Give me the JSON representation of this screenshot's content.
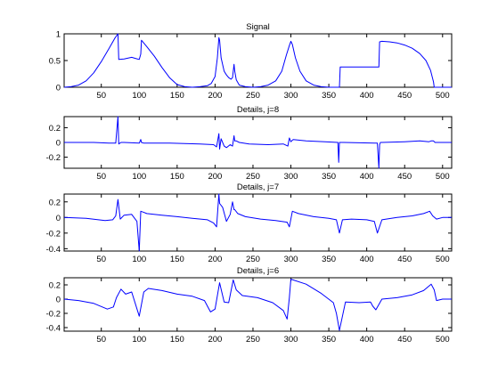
{
  "figure": {
    "background": "#ffffff",
    "line_color": "#0000ff",
    "axis_color": "#000000"
  },
  "chart_data": [
    {
      "type": "line",
      "title": "Signal",
      "xlim": [
        1,
        512
      ],
      "ylim": [
        0,
        1
      ],
      "xticks": [
        50,
        100,
        150,
        200,
        250,
        300,
        350,
        400,
        450,
        500
      ],
      "yticks": [
        0,
        0.5,
        1
      ],
      "ytick_labels": [
        "0",
        "0.5",
        "1"
      ],
      "grid": false,
      "series": [
        {
          "x": [
            1,
            10,
            20,
            30,
            40,
            50,
            60,
            68,
            72,
            73,
            80,
            90,
            95,
            100,
            102,
            103,
            110,
            120,
            130,
            140,
            150,
            160,
            170,
            180,
            190,
            195,
            200,
            203,
            205,
            206,
            208,
            212,
            215,
            218,
            221,
            223,
            225,
            226,
            228,
            232,
            240,
            250,
            260,
            270,
            280,
            288,
            294,
            298,
            300,
            302,
            306,
            312,
            320,
            330,
            340,
            350,
            362,
            364,
            365,
            380,
            400,
            416,
            417,
            420,
            430,
            440,
            450,
            460,
            470,
            478,
            484,
            488,
            489,
            490,
            512
          ],
          "y": [
            0,
            0.01,
            0.04,
            0.12,
            0.27,
            0.48,
            0.72,
            0.92,
            1.0,
            0.52,
            0.53,
            0.56,
            0.54,
            0.52,
            0.62,
            0.88,
            0.76,
            0.58,
            0.37,
            0.18,
            0.05,
            0.01,
            0,
            0.01,
            0.03,
            0.07,
            0.2,
            0.55,
            0.93,
            0.88,
            0.55,
            0.3,
            0.23,
            0.18,
            0.15,
            0.18,
            0.43,
            0.3,
            0.14,
            0.04,
            0.01,
            0,
            0.01,
            0.04,
            0.12,
            0.3,
            0.6,
            0.78,
            0.86,
            0.8,
            0.55,
            0.3,
            0.12,
            0.04,
            0.01,
            0,
            0,
            0,
            0.38,
            0.38,
            0.38,
            0.38,
            0.85,
            0.86,
            0.85,
            0.83,
            0.79,
            0.73,
            0.63,
            0.5,
            0.32,
            0.1,
            0,
            0,
            0
          ]
        }
      ]
    },
    {
      "type": "line",
      "title": "Details, j=8",
      "xlim": [
        1,
        512
      ],
      "ylim": [
        -0.35,
        0.35
      ],
      "xticks": [
        50,
        100,
        150,
        200,
        250,
        300,
        350,
        400,
        450,
        500
      ],
      "yticks": [
        -0.2,
        0,
        0.2
      ],
      "ytick_labels": [
        "-0.2",
        "0",
        "0.2"
      ],
      "grid": false,
      "series": [
        {
          "x": [
            1,
            40,
            60,
            69,
            72,
            73,
            76,
            80,
            100,
            102,
            103,
            106,
            140,
            180,
            198,
            202,
            205,
            206,
            208,
            212,
            215,
            220,
            223,
            225,
            226,
            228,
            232,
            245,
            270,
            290,
            296,
            298,
            300,
            303,
            320,
            345,
            362,
            363,
            364,
            365,
            366,
            370,
            410,
            414,
            416,
            417,
            418,
            420,
            450,
            470,
            482,
            485,
            488,
            490,
            500,
            512
          ],
          "y": [
            0,
            0,
            -0.01,
            -0.01,
            0.35,
            -0.02,
            0,
            0,
            -0.01,
            0.04,
            0,
            -0.01,
            -0.01,
            -0.02,
            -0.03,
            -0.06,
            0.12,
            -0.09,
            0.05,
            -0.05,
            -0.07,
            -0.03,
            -0.05,
            0.09,
            0.02,
            0.02,
            0,
            -0.02,
            -0.03,
            -0.02,
            -0.05,
            0.06,
            0.01,
            0.04,
            0.02,
            0.01,
            0,
            -0.27,
            0,
            0,
            0,
            0,
            -0.01,
            -0.01,
            -0.35,
            -0.03,
            0,
            0,
            0.01,
            0.02,
            0.01,
            0.02,
            0.02,
            0,
            0,
            0
          ]
        }
      ]
    },
    {
      "type": "line",
      "title": "Details, j=7",
      "xlim": [
        1,
        512
      ],
      "ylim": [
        -0.43,
        0.3
      ],
      "xticks": [
        50,
        100,
        150,
        200,
        250,
        300,
        350,
        400,
        450,
        500
      ],
      "yticks": [
        -0.4,
        -0.2,
        0,
        0.2
      ],
      "ytick_labels": [
        "-0.4",
        "-0.2",
        "0",
        "0.2"
      ],
      "grid": false,
      "series": [
        {
          "x": [
            1,
            30,
            55,
            65,
            69,
            72,
            75,
            80,
            90,
            97,
            100,
            102,
            105,
            110,
            130,
            150,
            170,
            190,
            198,
            202,
            205,
            206,
            210,
            215,
            220,
            223,
            225,
            226,
            230,
            240,
            260,
            280,
            295,
            298,
            302,
            310,
            330,
            350,
            360,
            364,
            368,
            380,
            400,
            410,
            414,
            420,
            440,
            460,
            475,
            483,
            487,
            492,
            500,
            512
          ],
          "y": [
            0,
            -0.01,
            -0.04,
            -0.03,
            0.02,
            0.23,
            -0.02,
            0.03,
            0.04,
            -0.05,
            -0.43,
            0.08,
            0.07,
            0.05,
            0.03,
            0.01,
            -0.01,
            -0.03,
            -0.07,
            -0.12,
            0.3,
            0.18,
            0.13,
            -0.05,
            0.04,
            0.2,
            0.1,
            0.1,
            0.05,
            0.01,
            -0.02,
            -0.04,
            -0.06,
            -0.12,
            0.08,
            0.05,
            0.01,
            -0.01,
            -0.03,
            -0.2,
            -0.03,
            -0.02,
            -0.03,
            -0.05,
            -0.2,
            -0.03,
            0,
            0.02,
            0.05,
            0.08,
            0.02,
            -0.02,
            0,
            0
          ]
        }
      ]
    },
    {
      "type": "line",
      "title": "Details, j=6",
      "xlim": [
        1,
        512
      ],
      "ylim": [
        -0.45,
        0.3
      ],
      "xticks": [
        50,
        100,
        150,
        200,
        250,
        300,
        350,
        400,
        450,
        500
      ],
      "yticks": [
        -0.4,
        -0.2,
        0,
        0.2
      ],
      "ytick_labels": [
        "-0.4",
        "-0.2",
        "0",
        "0.2"
      ],
      "grid": false,
      "series": [
        {
          "x": [
            1,
            20,
            40,
            58,
            66,
            70,
            76,
            82,
            90,
            100,
            106,
            112,
            130,
            150,
            170,
            186,
            194,
            200,
            206,
            212,
            218,
            224,
            228,
            236,
            256,
            276,
            290,
            295,
            298,
            300,
            320,
            340,
            356,
            360,
            364,
            372,
            390,
            405,
            408,
            412,
            420,
            440,
            460,
            475,
            485,
            489,
            492,
            500,
            512
          ],
          "y": [
            0,
            -0.02,
            -0.06,
            -0.14,
            -0.11,
            0.02,
            0.14,
            0.07,
            0.1,
            -0.24,
            0.1,
            0.15,
            0.12,
            0.07,
            0.04,
            -0.02,
            -0.18,
            -0.14,
            0.23,
            -0.04,
            -0.05,
            0.27,
            0.13,
            0.05,
            0.02,
            -0.05,
            -0.16,
            -0.28,
            0.02,
            0.28,
            0.21,
            0.08,
            -0.05,
            -0.2,
            -0.44,
            -0.04,
            -0.05,
            -0.04,
            -0.1,
            -0.15,
            0,
            0.02,
            0.06,
            0.12,
            0.21,
            0.13,
            -0.02,
            0,
            0
          ]
        }
      ]
    }
  ]
}
